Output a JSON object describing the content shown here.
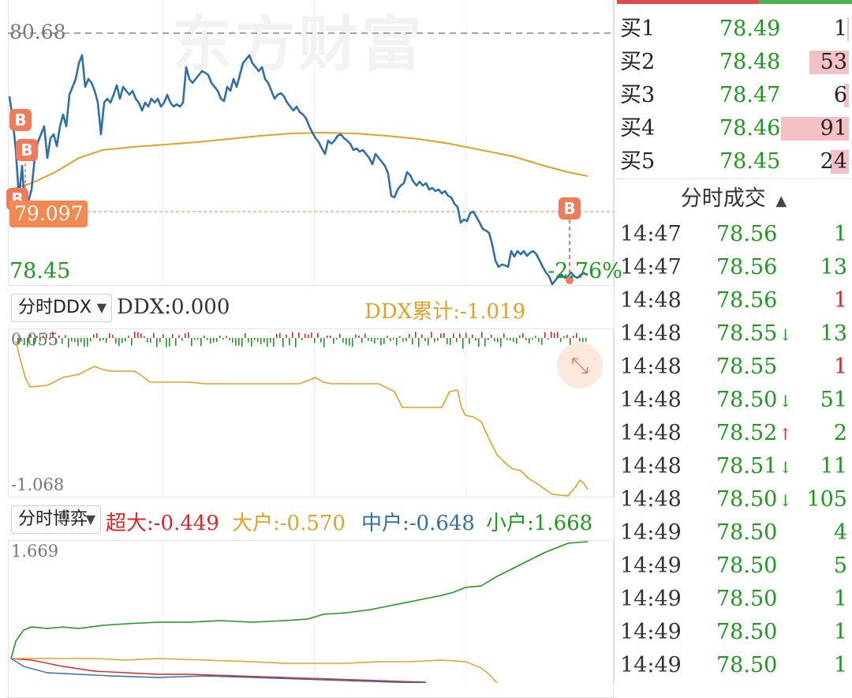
{
  "watermark": "东方财富",
  "price_chart": {
    "high_label": "80.68",
    "low_label": "78.45",
    "avg_marker": "79.097",
    "change_pct": "-2.76%",
    "b_marker": "B"
  },
  "ddx_bar": {
    "selector": "分时DDX",
    "ddx_value": "DDX:0.000",
    "ddx_cum": "DDX累计:-1.019"
  },
  "ddx_chart": {
    "top_label": "0.055",
    "bottom_label": "-1.068"
  },
  "game_bar": {
    "selector": "分时博弈",
    "super": "超大:-0.449",
    "big": "大户:-0.570",
    "mid": "中户:-0.648",
    "small": "小户:1.668"
  },
  "game_chart": {
    "top_label": "1.669"
  },
  "order_book": [
    {
      "label": "买1",
      "price": "78.49",
      "volume": "1",
      "bar": 0.02
    },
    {
      "label": "买2",
      "price": "78.48",
      "volume": "53",
      "bar": 0.55
    },
    {
      "label": "买3",
      "price": "78.47",
      "volume": "6",
      "bar": 0.07
    },
    {
      "label": "买4",
      "price": "78.46",
      "volume": "91",
      "bar": 0.95
    },
    {
      "label": "买5",
      "price": "78.45",
      "volume": "24",
      "bar": 0.25
    }
  ],
  "trades_header": "分时成交",
  "trades": [
    {
      "time": "14:47",
      "price": "78.56",
      "dir": "",
      "volume": "1",
      "vcolor": "#1a9c1a"
    },
    {
      "time": "14:47",
      "price": "78.56",
      "dir": "",
      "volume": "13",
      "vcolor": "#1a9c1a"
    },
    {
      "time": "14:48",
      "price": "78.56",
      "dir": "",
      "volume": "1",
      "vcolor": "#e32424"
    },
    {
      "time": "14:48",
      "price": "78.55",
      "dir": "↓",
      "volume": "13",
      "vcolor": "#1a9c1a"
    },
    {
      "time": "14:48",
      "price": "78.55",
      "dir": "",
      "volume": "1",
      "vcolor": "#e32424"
    },
    {
      "time": "14:48",
      "price": "78.50",
      "dir": "↓",
      "volume": "51",
      "vcolor": "#1a9c1a"
    },
    {
      "time": "14:48",
      "price": "78.52",
      "dir": "↑",
      "volume": "2",
      "vcolor": "#1a9c1a"
    },
    {
      "time": "14:48",
      "price": "78.51",
      "dir": "↓",
      "volume": "11",
      "vcolor": "#1a9c1a"
    },
    {
      "time": "14:48",
      "price": "78.50",
      "dir": "↓",
      "volume": "105",
      "vcolor": "#1a9c1a"
    },
    {
      "time": "14:49",
      "price": "78.50",
      "dir": "",
      "volume": "4",
      "vcolor": "#1a9c1a"
    },
    {
      "time": "14:49",
      "price": "78.50",
      "dir": "",
      "volume": "5",
      "vcolor": "#1a9c1a"
    },
    {
      "time": "14:49",
      "price": "78.50",
      "dir": "",
      "volume": "1",
      "vcolor": "#1a9c1a"
    },
    {
      "time": "14:49",
      "price": "78.50",
      "dir": "",
      "volume": "1",
      "vcolor": "#1a9c1a"
    },
    {
      "time": "14:49",
      "price": "78.50",
      "dir": "",
      "volume": "1",
      "vcolor": "#1a9c1a"
    }
  ],
  "colors": {
    "price_line": "#2f6fb0",
    "avg_line": "#e8a020",
    "up": "#e32424",
    "down": "#1a9c1a",
    "marker": "#f07a5a"
  }
}
